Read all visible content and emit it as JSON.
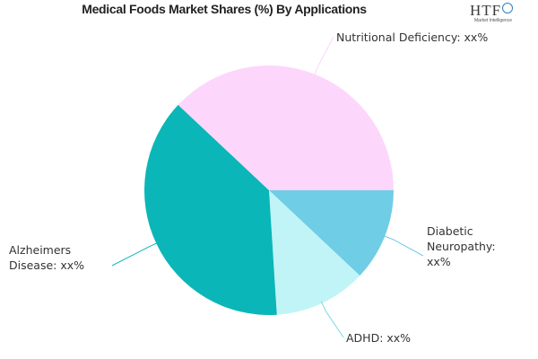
{
  "chart_data": {
    "type": "pie",
    "title": "Medical Foods Market Shares (%) By Applications",
    "slices": [
      {
        "label": "Diabetic Neuropathy: xx%",
        "lines": [
          "Diabetic",
          "Neuropathy:",
          "xx%"
        ],
        "value": 12,
        "color": "#6fcde6"
      },
      {
        "label": "ADHD: xx%",
        "lines": [
          "ADHD: xx%"
        ],
        "value": 12,
        "color": "#c1f4f6"
      },
      {
        "label": "Alzheimers Disease: xx%",
        "lines": [
          "Alzheimers",
          "Disease: xx%"
        ],
        "value": 38,
        "color": "#0ab6b8"
      },
      {
        "label": "Nutritional Deficiency: xx%",
        "lines": [
          "Nutritional Deficiency: xx%"
        ],
        "value": 38,
        "color": "#fdd6fb"
      }
    ],
    "start_angle_deg": 0,
    "direction": "clockwise",
    "legend": "none"
  },
  "logo": {
    "main": "HTF",
    "sub": "Market Intelligence",
    "accent": "#2e7fc4"
  }
}
